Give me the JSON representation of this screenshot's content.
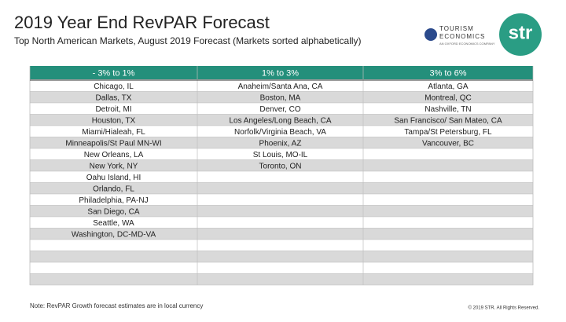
{
  "header": {
    "title": "2019 Year End RevPAR Forecast",
    "subtitle": "Top North American Markets, August 2019 Forecast (Markets sorted alphabetically)"
  },
  "logos": {
    "tourism_line1": "TOURISM",
    "tourism_line2": "ECONOMICS",
    "tourism_tagline": "AN OXFORD ECONOMICS COMPANY",
    "str": "str"
  },
  "table": {
    "columns": [
      {
        "header": "- 3% to 1%",
        "markets": [
          "Chicago, IL",
          "Dallas, TX",
          "Detroit, MI",
          "Houston, TX",
          "Miami/Hialeah, FL",
          "Minneapolis/St Paul MN-WI",
          "New Orleans, LA",
          "New York, NY",
          "Oahu Island, HI",
          "Orlando, FL",
          "Philadelphia, PA-NJ",
          "San Diego, CA",
          "Seattle, WA",
          "Washington, DC-MD-VA"
        ]
      },
      {
        "header": "1% to 3%",
        "markets": [
          "Anaheim/Santa Ana, CA",
          "Boston, MA",
          "Denver, CO",
          "Los Angeles/Long Beach, CA",
          "Norfolk/Virginia Beach, VA",
          "Phoenix, AZ",
          "St Louis, MO-IL",
          "Toronto, ON"
        ]
      },
      {
        "header": "3% to 6%",
        "markets": [
          "Atlanta, GA",
          "Montreal, QC",
          "Nashville, TN",
          "San Francisco/ San Mateo, CA",
          "Tampa/St Petersburg, FL",
          "Vancouver, BC"
        ]
      }
    ]
  },
  "footer": {
    "note": "Note: RevPAR Growth forecast estimates are in local currency",
    "copyright": "© 2019 STR. All Rights Reserved."
  }
}
